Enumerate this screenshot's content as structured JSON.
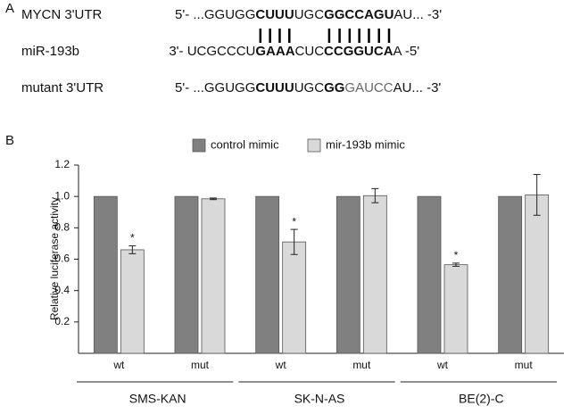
{
  "panel_a": {
    "label": "A",
    "rows": [
      {
        "name": "MYCN 3'UTR",
        "segments": [
          {
            "text": "5'- ...GGUGG"
          },
          {
            "text": "CUUU",
            "bold": true
          },
          {
            "text": "UGC"
          },
          {
            "text": "GGCCAGU",
            "bold": true
          },
          {
            "text": "AU... -3'"
          }
        ]
      },
      {
        "name": "miR-193b",
        "segments": [
          {
            "text": "3'- UCGCCCU"
          },
          {
            "text": "GAAA",
            "bold": true
          },
          {
            "text": "CUC"
          },
          {
            "text": "CCGGUCA",
            "bold": true
          },
          {
            "text": "A -5'"
          }
        ]
      },
      {
        "name": "mutant 3'UTR",
        "segments": [
          {
            "text": "5'- ...GGUGG"
          },
          {
            "text": "CUUU",
            "bold": true
          },
          {
            "text": "UGC"
          },
          {
            "text": "GG",
            "bold": true
          },
          {
            "text": "GAUCC",
            "color": "#666666"
          },
          {
            "text": "AU... -3'"
          }
        ]
      }
    ]
  },
  "chart_data": {
    "type": "bar",
    "panel_label": "B",
    "ylabel": "Relative luciferase activity",
    "categories": [
      "wt",
      "mut",
      "wt",
      "mut",
      "wt",
      "mut"
    ],
    "groups": [
      "SMS-KAN",
      "SK-N-AS",
      "BE(2)-C"
    ],
    "series": [
      {
        "name": "control mimic",
        "color": "#808080",
        "values": [
          1,
          1,
          1,
          1,
          1,
          1
        ]
      },
      {
        "name": "mir-193b mimic",
        "color": "#d9d9d9",
        "values": [
          0.66,
          0.985,
          0.71,
          1.005,
          0.565,
          1.01
        ],
        "errors": [
          0.025,
          0.005,
          0.08,
          0.045,
          0.01,
          0.13
        ],
        "annotations": [
          "*",
          null,
          "*",
          null,
          "*",
          null
        ]
      }
    ],
    "ylim": [
      0,
      1.2
    ],
    "yticks": [
      0.2,
      0.4,
      0.6,
      0.8,
      {
        "value": 1,
        "label": "1.0"
      },
      1.2
    ],
    "grid": false
  }
}
